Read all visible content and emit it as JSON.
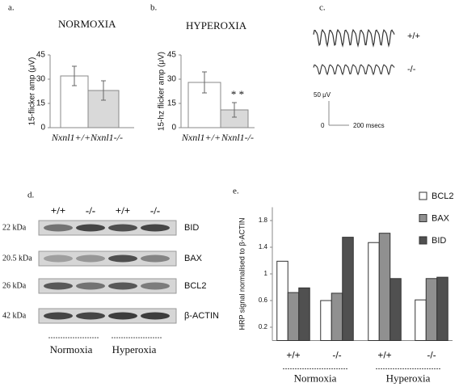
{
  "chart_data": [
    {
      "type": "bar",
      "label": "a.",
      "title": "NORMOXIA",
      "y_label": "15-flicker amp (μV)",
      "categories": [
        "Nxnl1+/+",
        "Nxnl1-/-"
      ],
      "values": [
        32,
        23
      ],
      "errors": [
        6,
        6
      ],
      "colors": [
        "#ffffff",
        "#d9d9d9"
      ],
      "ylim": [
        0,
        45
      ],
      "yticks": [
        0,
        15,
        30,
        45
      ]
    },
    {
      "type": "bar",
      "label": "b.",
      "title": "HYPEROXIA",
      "y_label": "15-hz flicker amp (μV)",
      "categories": [
        "Nxnl1+/+",
        "Nxnl1-/-"
      ],
      "values": [
        28,
        11
      ],
      "errors": [
        6.5,
        4.5
      ],
      "colors": [
        "#ffffff",
        "#d9d9d9"
      ],
      "annotation": "* *",
      "ylim": [
        0,
        45
      ],
      "yticks": [
        0,
        15,
        30,
        45
      ]
    },
    {
      "type": "grouped_bar",
      "label": "e.",
      "y_label": "HRP signal normalised to β-ACTIN",
      "categories": [
        "+/+",
        "-/-",
        "+/+",
        "-/-"
      ],
      "groups": [
        "Normoxia",
        "Hyperoxia"
      ],
      "series": [
        {
          "name": "BCL2",
          "color": "#ffffff",
          "values": [
            1.19,
            0.6,
            1.47,
            0.61
          ]
        },
        {
          "name": "BAX",
          "color": "#909090",
          "values": [
            0.72,
            0.71,
            1.61,
            0.93
          ]
        },
        {
          "name": "BID",
          "color": "#505050",
          "values": [
            0.79,
            1.55,
            0.93,
            0.95
          ]
        }
      ],
      "ylim": [
        0,
        2
      ],
      "yticks": [
        0.2,
        0.6,
        1,
        1.4,
        1.8
      ]
    }
  ],
  "panel_c": {
    "label": "c.",
    "traces": [
      "+/+",
      "-/-"
    ],
    "scale_y": "50 μV",
    "scale_origin": "0",
    "scale_x": "200 msecs"
  },
  "panel_d": {
    "label": "d.",
    "lanes": [
      "+/+",
      "-/-",
      "+/+",
      "-/-"
    ],
    "rows": [
      {
        "size": "22 kDa",
        "protein": "BID"
      },
      {
        "size": "20.5 kDa",
        "protein": "BAX"
      },
      {
        "size": "26 kDa",
        "protein": "BCL2"
      },
      {
        "size": "42 kDa",
        "protein": "β-ACTIN"
      }
    ],
    "groups": [
      "Normoxia",
      "Hyperoxia"
    ]
  }
}
